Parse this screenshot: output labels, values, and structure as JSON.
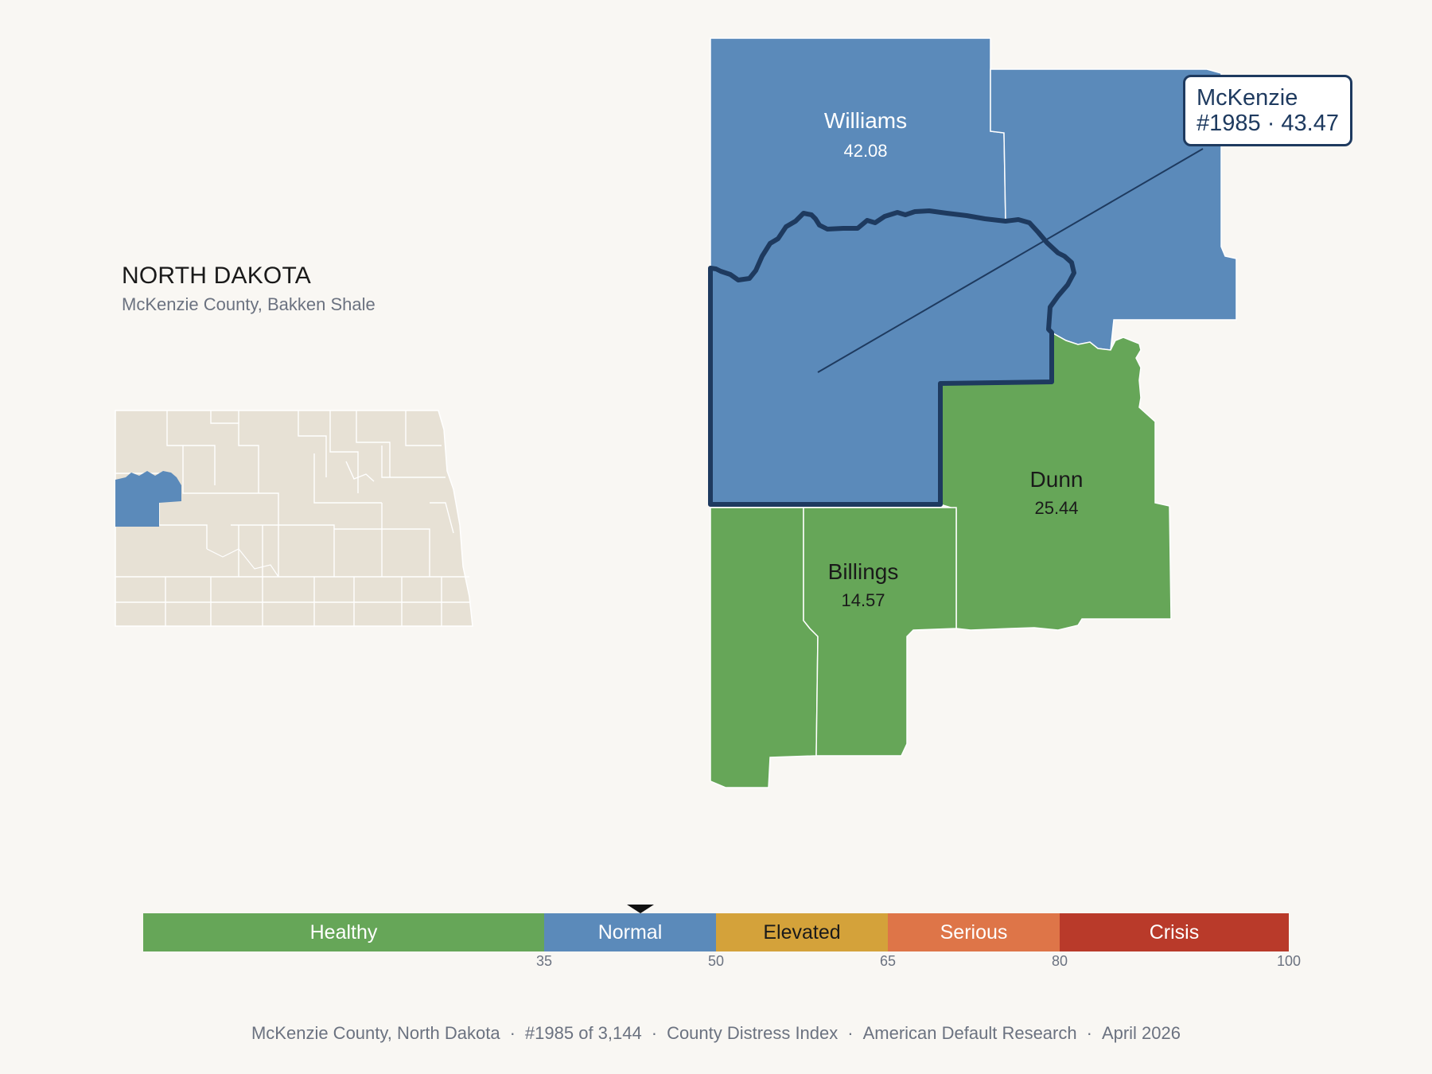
{
  "header": {
    "state": "NORTH DAKOTA",
    "subtitle": "McKenzie County, Bakken Shale"
  },
  "callout": {
    "county": "McKenzie",
    "rank_value": "#1985 · 43.47"
  },
  "counties": [
    {
      "name": "Williams",
      "value": "42.08",
      "category": "Normal"
    },
    {
      "name": "Dunn",
      "value": "25.44",
      "category": "Healthy"
    },
    {
      "name": "Billings",
      "value": "14.57",
      "category": "Healthy"
    },
    {
      "name": "McKenzie",
      "value": 43.47,
      "category": "Normal",
      "highlighted": true
    }
  ],
  "scale": {
    "segments": [
      {
        "label": "Healthy",
        "from": 0,
        "to": 35,
        "color": "#66a658"
      },
      {
        "label": "Normal",
        "from": 35,
        "to": 50,
        "color": "#5b8aba"
      },
      {
        "label": "Elevated",
        "from": 50,
        "to": 65,
        "color": "#d4a23a"
      },
      {
        "label": "Serious",
        "from": 65,
        "to": 80,
        "color": "#de7548"
      },
      {
        "label": "Crisis",
        "from": 80,
        "to": 100,
        "color": "#b93a2a"
      }
    ],
    "ticks": [
      "35",
      "50",
      "65",
      "80",
      "100"
    ],
    "marker_value": 43.47
  },
  "colors": {
    "normal": "#5b8aba",
    "healthy": "#66a658",
    "highlight_outline": "#1e3a5f",
    "inset_land": "#e7e1d5"
  },
  "footer": {
    "items": [
      "McKenzie County, North Dakota",
      "#1985 of 3,144",
      "County Distress Index",
      "American Default Research",
      "April 2026"
    ]
  }
}
